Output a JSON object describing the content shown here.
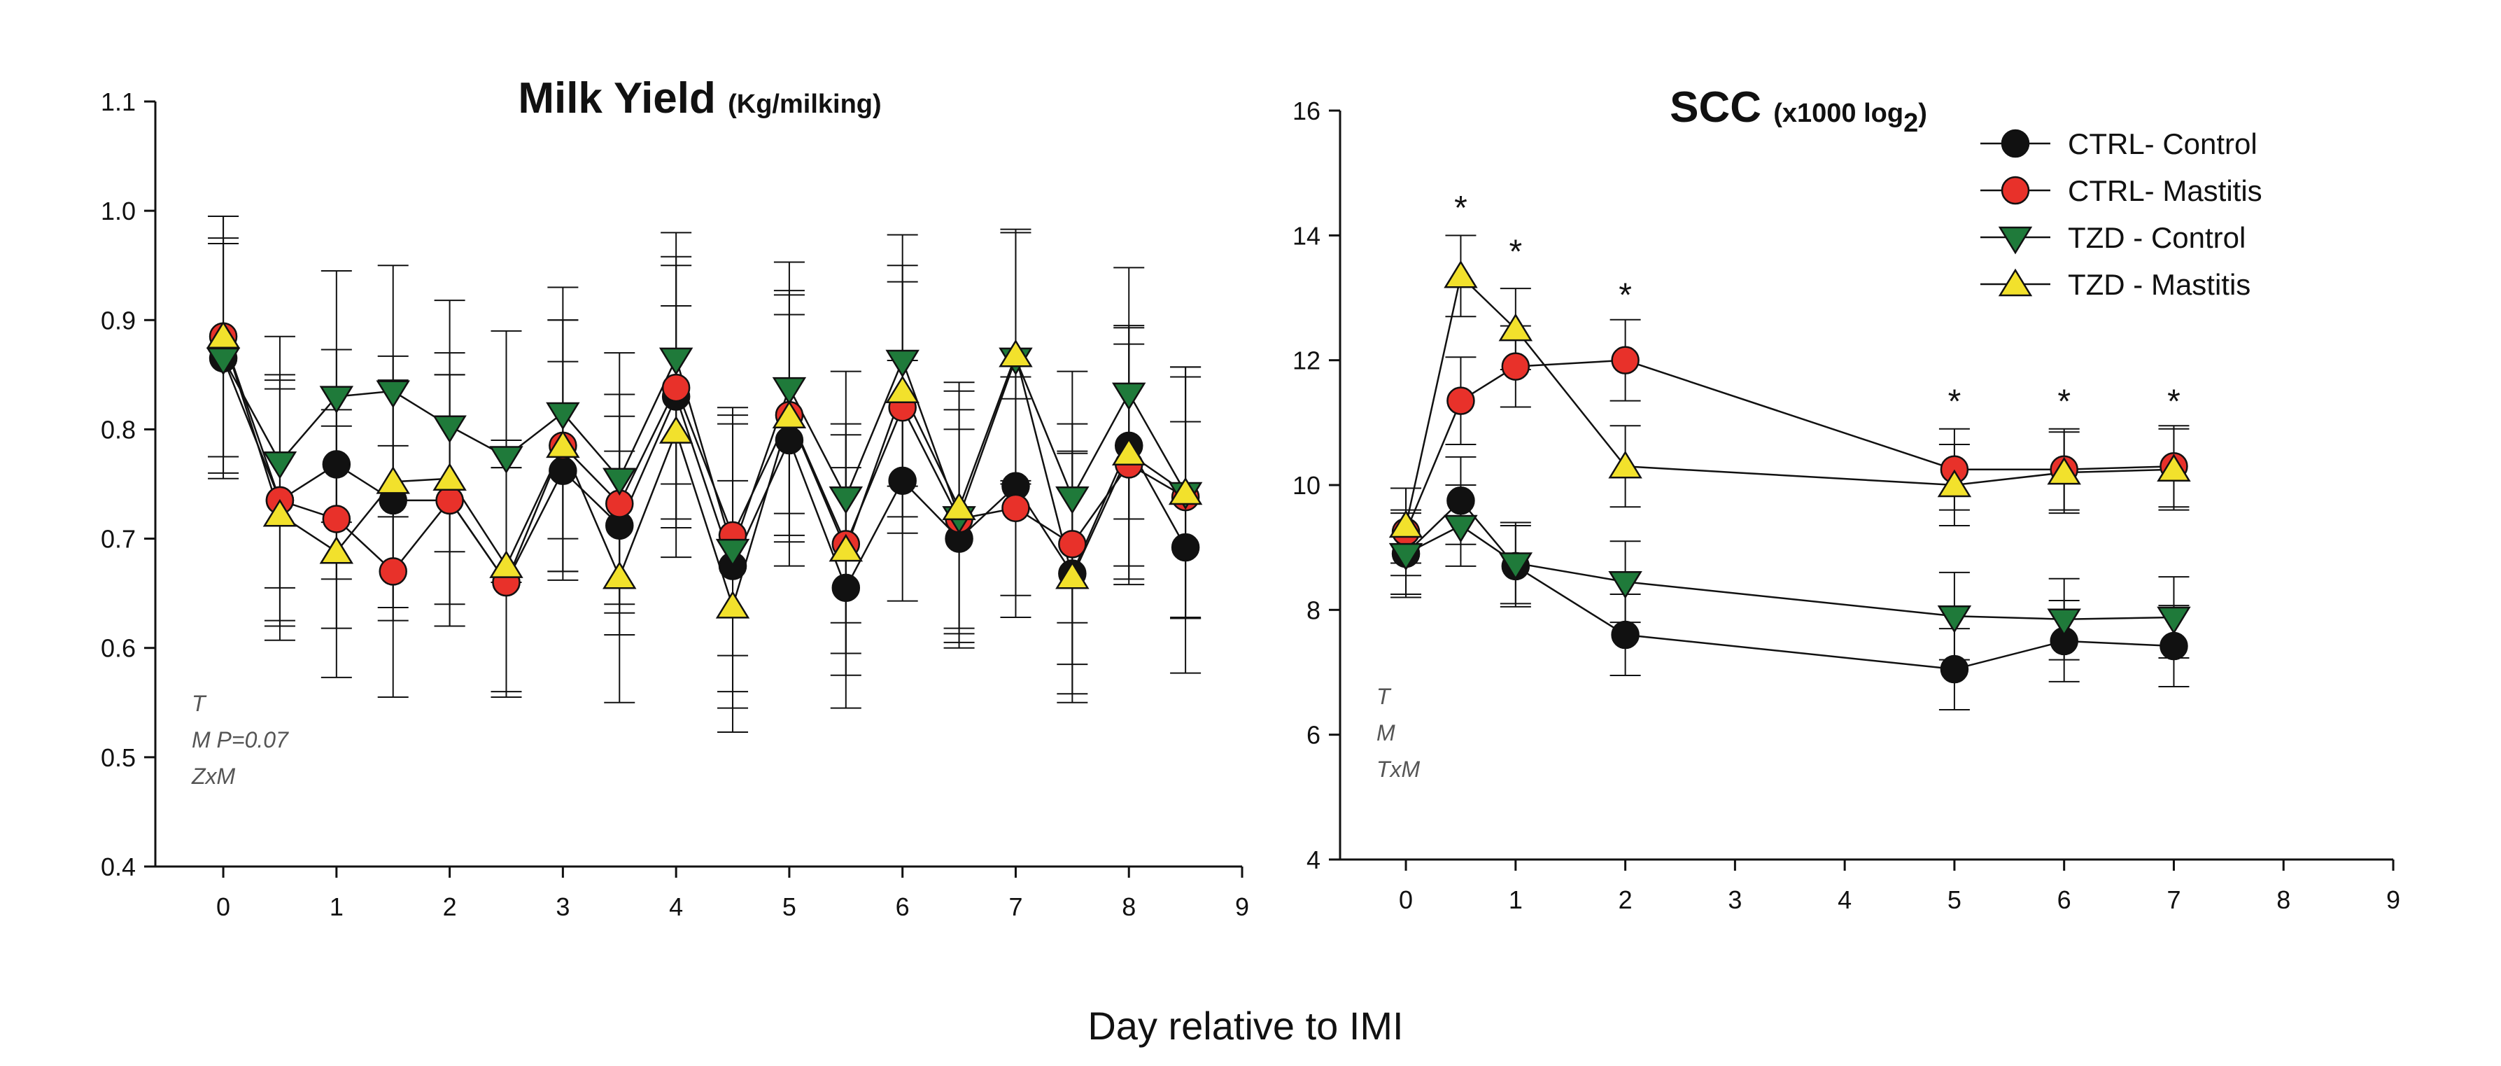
{
  "figure": {
    "xlabel": "Day relative to IMI"
  },
  "colors": {
    "CTRL- Control": "#111111",
    "CTRL- Mastitis": "#e8312a",
    "TZD - Control": "#1f7a3a",
    "TZD - Mastitis": "#f2e12c"
  },
  "markers": {
    "CTRL- Control": "circle",
    "CTRL- Mastitis": "circle",
    "TZD - Control": "triangle-down",
    "TZD - Mastitis": "triangle-up"
  },
  "chart_data": [
    {
      "type": "line",
      "title": "Milk Yield",
      "title_units": "(Kg/milking)",
      "xlabel": "Day relative to IMI",
      "ylabel": "",
      "xlim": [
        -0.6,
        9
      ],
      "ylim": [
        0.4,
        1.1
      ],
      "xticks": [
        "0",
        "1",
        "2",
        "3",
        "4",
        "5",
        "6",
        "7",
        "8",
        "9"
      ],
      "yticks": [
        "0.4",
        "0.5",
        "0.6",
        "0.7",
        "0.8",
        "0.9",
        "1.0",
        "1.1"
      ],
      "stats": [
        "T",
        "M  P=0.07",
        "ZxM"
      ],
      "x": [
        0,
        0.5,
        1,
        1.5,
        2,
        2.5,
        3,
        3.5,
        4,
        4.5,
        5,
        5.5,
        6,
        6.5,
        7,
        7.5,
        8,
        8.5
      ],
      "series": [
        {
          "name": "CTRL- Control",
          "values": [
            0.865,
            0.735,
            0.768,
            0.735,
            0.735,
            0.66,
            0.762,
            0.712,
            0.83,
            0.675,
            0.79,
            0.655,
            0.753,
            0.7,
            0.748,
            0.668,
            0.785,
            0.692
          ],
          "errors": [
            0.11,
            0.115,
            0.105,
            0.11,
            0.115,
            0.105,
            0.1,
            0.1,
            0.12,
            0.13,
            0.115,
            0.11,
            0.11,
            0.1,
            0.1,
            0.11,
            0.11,
            0.115
          ]
        },
        {
          "name": "CTRL- Mastitis",
          "values": [
            0.885,
            0.735,
            0.718,
            0.67,
            0.735,
            0.66,
            0.785,
            0.732,
            0.838,
            0.703,
            0.813,
            0.695,
            0.82,
            0.718,
            0.728,
            0.695,
            0.768,
            0.738
          ],
          "errors": [
            0.11,
            0.11,
            0.1,
            0.115,
            0.115,
            0.105,
            0.115,
            0.1,
            0.12,
            0.11,
            0.11,
            0.1,
            0.115,
            0.1,
            0.1,
            0.11,
            0.11,
            0.11
          ]
        },
        {
          "name": "TZD - Control",
          "values": [
            0.865,
            0.77,
            0.83,
            0.835,
            0.803,
            0.775,
            0.815,
            0.755,
            0.865,
            0.69,
            0.838,
            0.738,
            0.863,
            0.72,
            0.865,
            0.738,
            0.833,
            0.742
          ],
          "errors": [
            0.105,
            0.115,
            0.115,
            0.115,
            0.115,
            0.115,
            0.115,
            0.115,
            0.115,
            0.13,
            0.115,
            0.115,
            0.115,
            0.115,
            0.115,
            0.115,
            0.115,
            0.115
          ]
        },
        {
          "name": "TZD - Mastitis",
          "values": [
            0.885,
            0.722,
            0.688,
            0.752,
            0.755,
            0.675,
            0.785,
            0.665,
            0.798,
            0.638,
            0.812,
            0.69,
            0.835,
            0.728,
            0.868,
            0.665,
            0.778,
            0.742
          ],
          "errors": [
            0.11,
            0.115,
            0.115,
            0.115,
            0.115,
            0.115,
            0.115,
            0.115,
            0.115,
            0.115,
            0.115,
            0.115,
            0.115,
            0.115,
            0.115,
            0.115,
            0.115,
            0.115
          ]
        }
      ]
    },
    {
      "type": "line",
      "title": "SCC",
      "title_units": "(x1000 log",
      "title_sub": "2",
      "title_close": ")",
      "xlabel": "Day relative to IMI",
      "ylabel": "",
      "xlim": [
        -0.6,
        9
      ],
      "ylim": [
        4,
        16
      ],
      "xticks": [
        "0",
        "1",
        "2",
        "3",
        "4",
        "5",
        "6",
        "7",
        "8",
        "9"
      ],
      "yticks": [
        "4",
        "6",
        "8",
        "10",
        "12",
        "14",
        "16"
      ],
      "stats": [
        "T",
        "M",
        "TxM"
      ],
      "x": [
        0,
        0.5,
        1,
        2,
        5,
        6,
        7
      ],
      "significance": {
        "x": [
          0.5,
          1,
          2,
          5,
          6,
          7
        ],
        "y": [
          14.6,
          13.9,
          13.2,
          11.5,
          11.5,
          11.5
        ],
        "symbol": "*"
      },
      "series": [
        {
          "name": "CTRL- Control",
          "values": [
            8.9,
            9.75,
            8.7,
            7.6,
            7.05,
            7.5,
            7.42
          ],
          "errors": [
            0.7,
            0.7,
            0.65,
            0.65,
            0.65,
            0.65,
            0.65
          ]
        },
        {
          "name": "CTRL- Mastitis",
          "values": [
            9.25,
            11.35,
            11.9,
            12.0,
            10.25,
            10.25,
            10.3
          ],
          "errors": [
            0.7,
            0.7,
            0.65,
            0.65,
            0.65,
            0.65,
            0.65
          ]
        },
        {
          "name": "TZD - Control",
          "values": [
            8.9,
            9.35,
            8.75,
            8.45,
            7.9,
            7.85,
            7.88
          ],
          "errors": [
            0.65,
            0.65,
            0.65,
            0.65,
            0.7,
            0.65,
            0.65
          ]
        },
        {
          "name": "TZD - Mastitis",
          "values": [
            9.35,
            13.35,
            12.5,
            10.3,
            10.0,
            10.2,
            10.25
          ],
          "errors": [
            0.6,
            0.65,
            0.65,
            0.65,
            0.65,
            0.65,
            0.65
          ]
        }
      ]
    }
  ]
}
